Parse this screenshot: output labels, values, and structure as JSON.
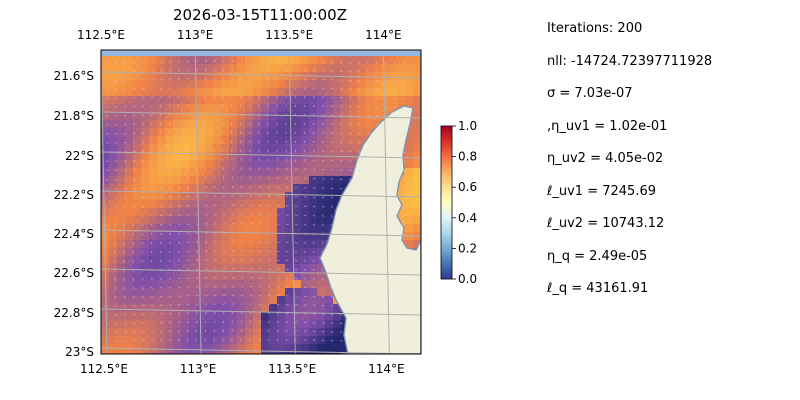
{
  "chart_data": {
    "type": "heatmap",
    "title": "2026-03-15T11:00:00Z",
    "xlabel": "",
    "ylabel": "",
    "x_ticks_top": [
      "112.5°E",
      "113°E",
      "113.5°E",
      "114°E"
    ],
    "x_ticks_bottom": [
      "112.5°E",
      "113°E",
      "113.5°E",
      "114°E"
    ],
    "x_tick_values": [
      112.5,
      113.0,
      113.5,
      114.0
    ],
    "y_ticks": [
      "21.6°S",
      "21.8°S",
      "22°S",
      "22.2°S",
      "22.4°S",
      "22.6°S",
      "22.8°S",
      "23°S"
    ],
    "y_tick_values": [
      -21.6,
      -21.8,
      -22.0,
      -22.2,
      -22.4,
      -22.6,
      -22.8,
      -23.0
    ],
    "xlim": [
      112.5,
      114.2
    ],
    "ylim": [
      -23.0,
      -21.5
    ],
    "grid": true,
    "colorbar": {
      "range": [
        0,
        1
      ],
      "ticks": [
        "0.0",
        "0.2",
        "0.4",
        "0.6",
        "0.8",
        "1.0"
      ],
      "tick_values": [
        0,
        0.2,
        0.4,
        0.6,
        0.8,
        1.0
      ],
      "colors": [
        "#313695",
        "#4575b4",
        "#74add1",
        "#abd9e9",
        "#e0f3f8",
        "#ffffbf",
        "#fee090",
        "#fdae61",
        "#f46d43",
        "#d73027",
        "#a50026"
      ]
    },
    "colors": {
      "ocean": "#97b6e2",
      "land": "#efefdb",
      "coast": "#7e93b0",
      "grid": "#b0b0b0"
    }
  },
  "params": [
    "Iterations: 200",
    "nll: -14724.72397711928",
    "σ = 7.03e-07",
    ",η_uv1 = 1.02e-01",
    "η_uv2 = 4.05e-02",
    "ℓ_uv1 = 7245.69",
    "ℓ_uv2 = 10743.12",
    "η_q = 2.49e-05",
    "ℓ_q = 43161.91"
  ]
}
